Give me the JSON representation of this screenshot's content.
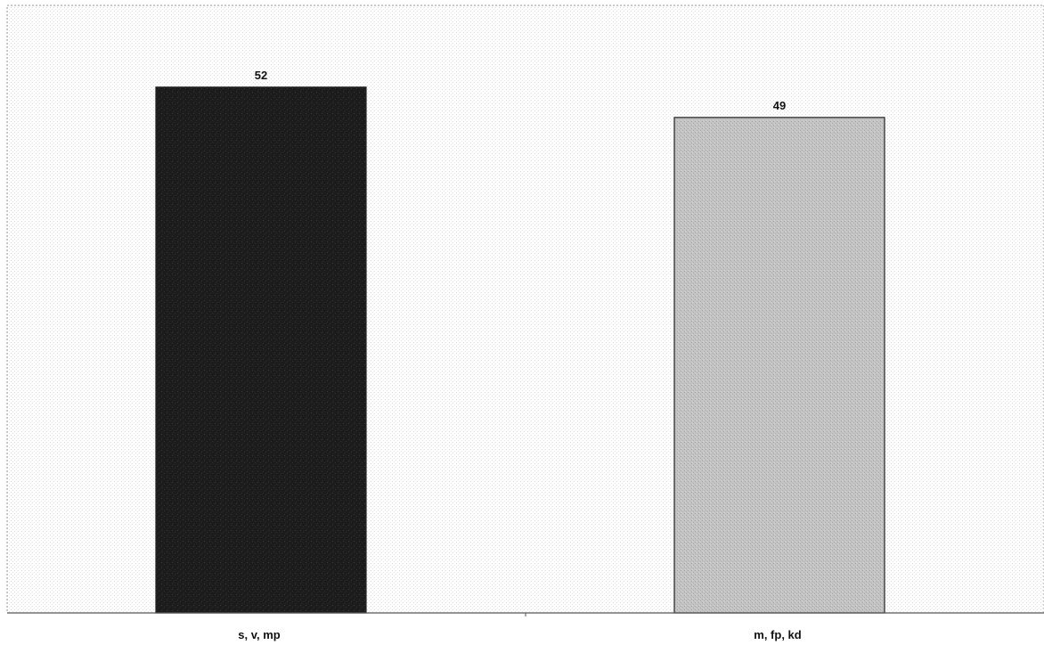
{
  "chart_data": {
    "type": "bar",
    "categories": [
      "s, v, mp",
      "m, fp, kd"
    ],
    "values": [
      52,
      49
    ],
    "data_labels": [
      "52",
      "49"
    ],
    "colors": [
      "#1e1e1e",
      "#bdbdbd"
    ],
    "ylim": [
      0,
      60
    ],
    "grid": false,
    "legend": "none",
    "title": "",
    "xlabel": "",
    "ylabel": ""
  }
}
